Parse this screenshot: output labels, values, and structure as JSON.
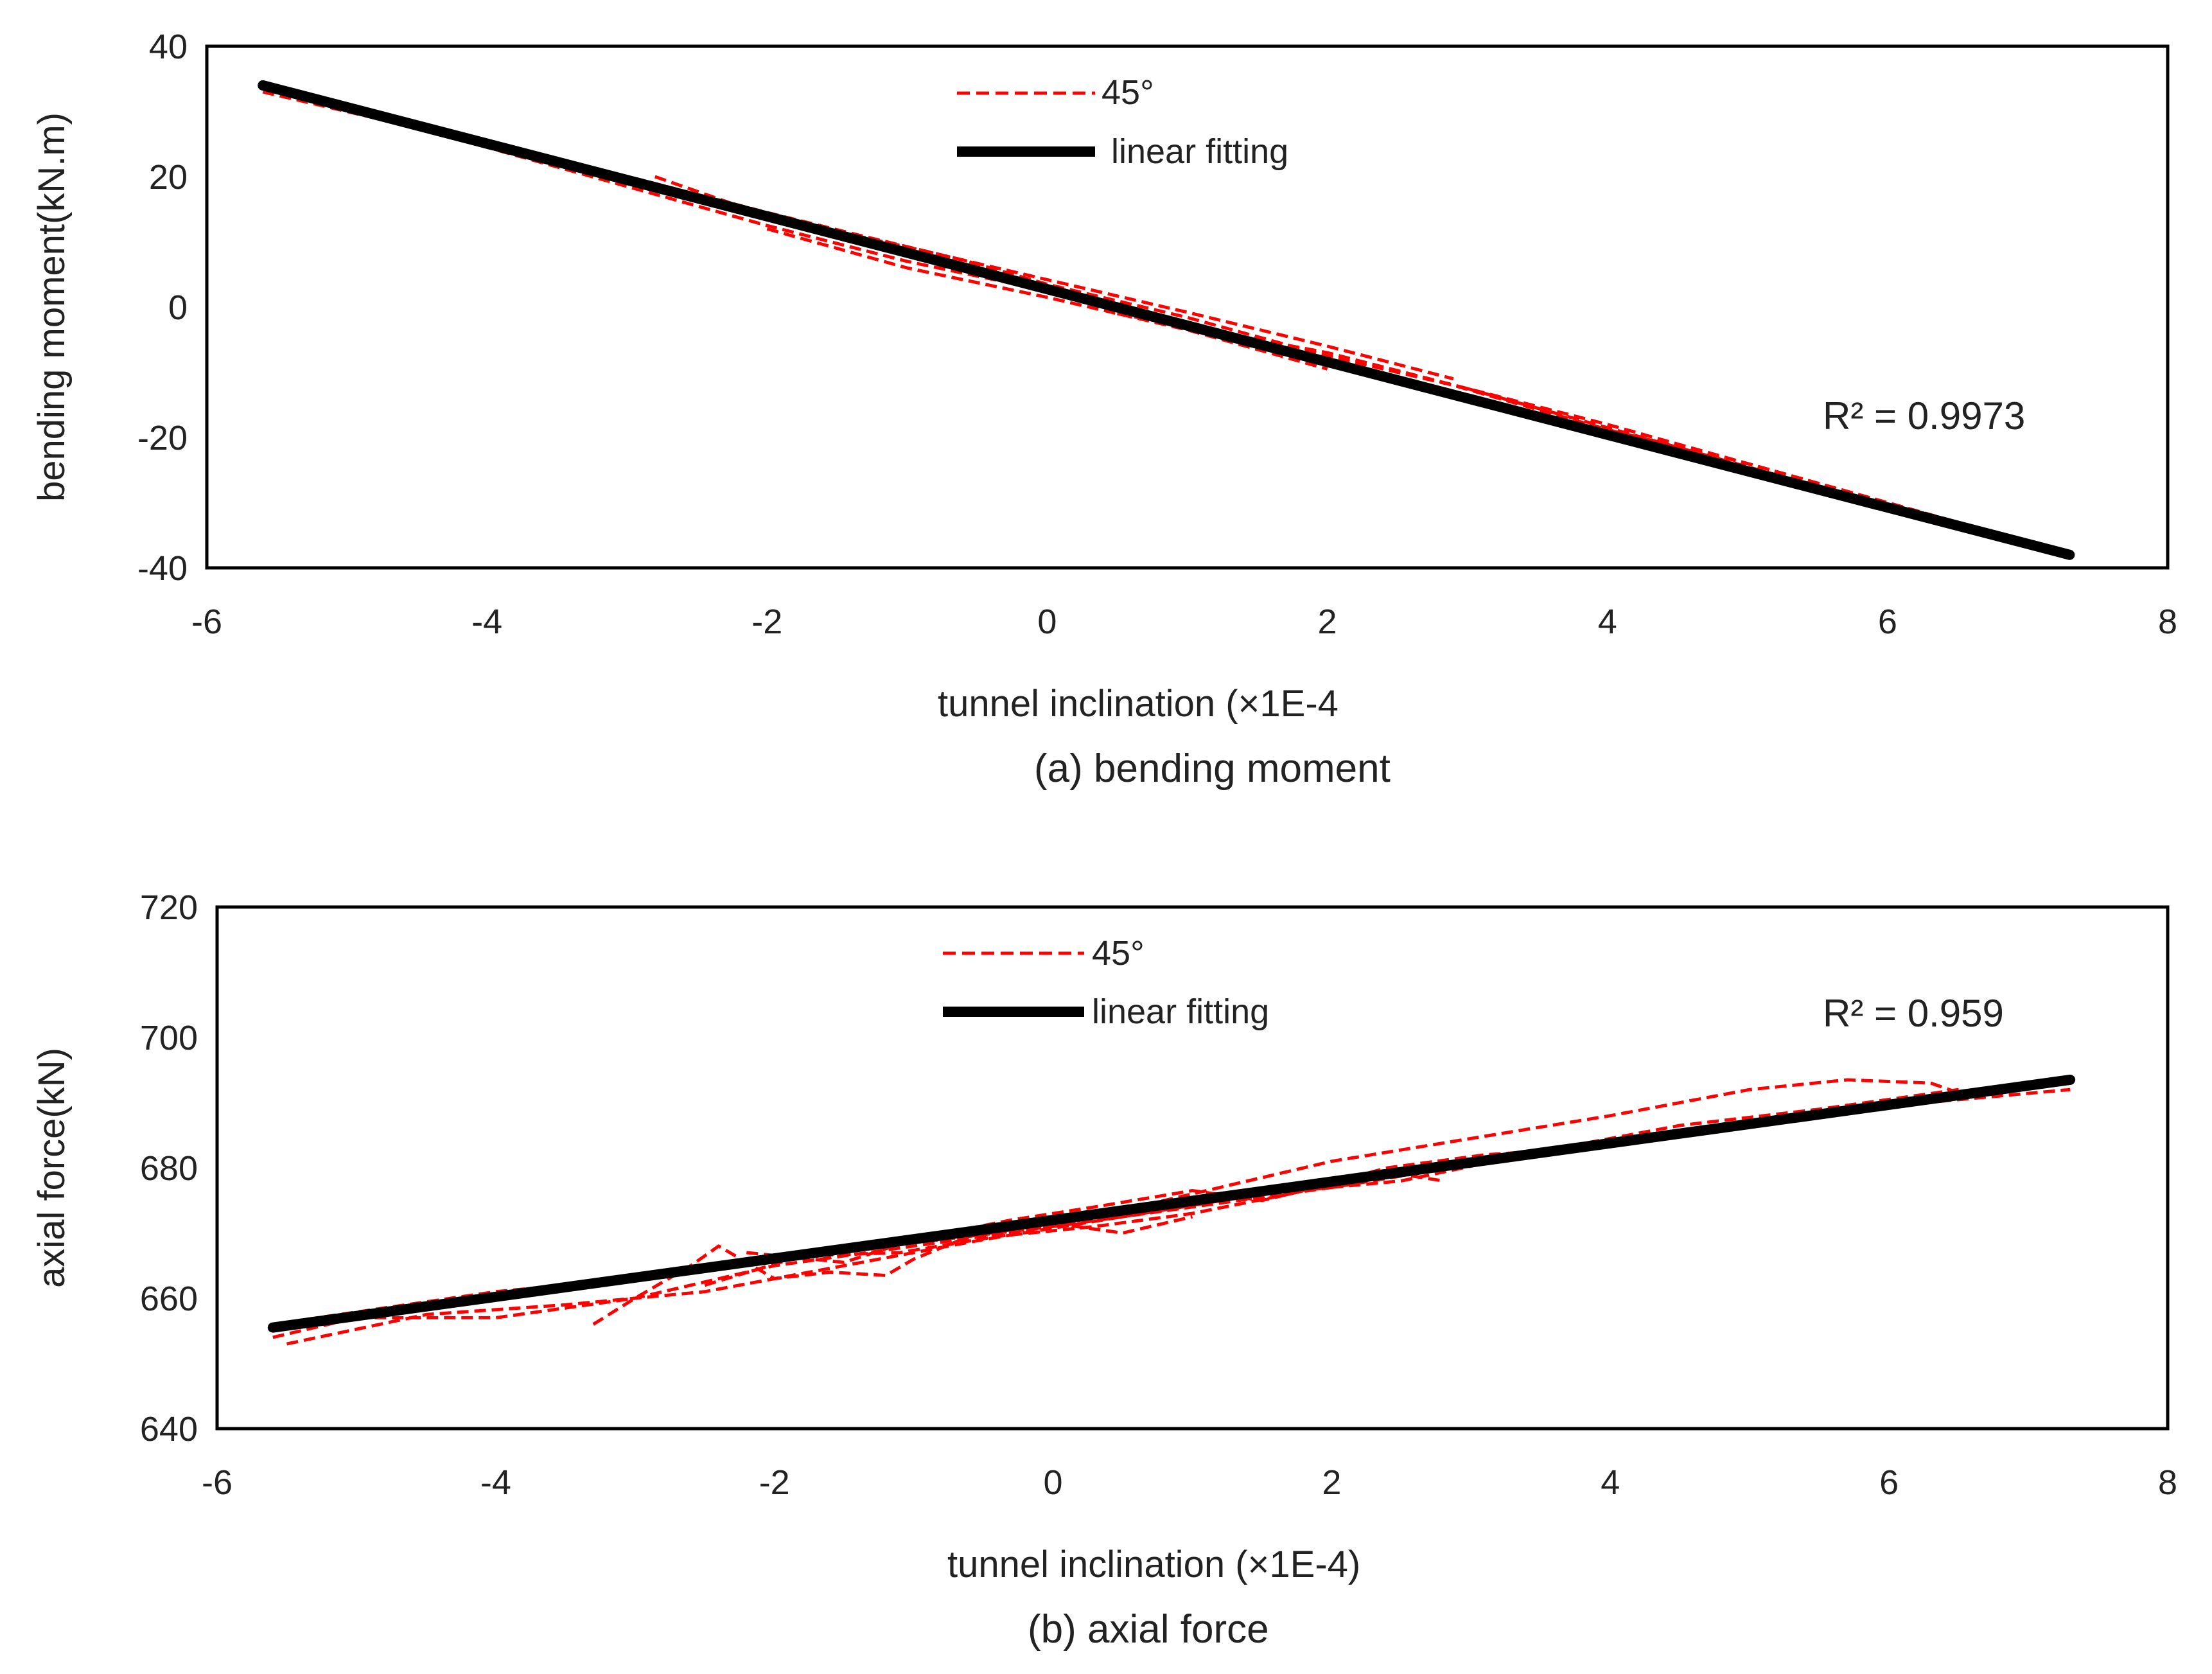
{
  "chart_data": [
    {
      "id": "a",
      "type": "line",
      "title": "",
      "caption": "(a)  bending moment",
      "xlabel": "tunnel inclination  (×1E-4",
      "ylabel": "bending moment(kN.m)",
      "xlim": [
        -6,
        8
      ],
      "ylim": [
        -40,
        40
      ],
      "xticks": [
        -6,
        -4,
        -2,
        0,
        2,
        4,
        6,
        8
      ],
      "yticks": [
        -40,
        -20,
        0,
        20,
        40
      ],
      "legend": [
        "45°",
        "linear fitting"
      ],
      "annotation": "R² = 0.9973",
      "colors": {
        "measured": "#ff0000",
        "fit": "#000000"
      },
      "series": [
        {
          "name": "45°",
          "style": "dashed",
          "curves": [
            {
              "x": [
                -5.6,
                -4.0,
                -2.9,
                -2.0,
                -1.3,
                -0.6,
                0.0,
                1.0,
                2.0,
                2.9,
                4.0,
                5.0,
                6.0,
                6.5
              ],
              "y": [
                34.0,
                25.0,
                19.5,
                14.5,
                10.8,
                7.2,
                3.5,
                -1.6,
                -7.5,
                -12.0,
                -18.8,
                -24.0,
                -30.0,
                -33.0
              ]
            },
            {
              "x": [
                -5.6,
                -4.5,
                -3.0,
                -2.0,
                -1.0,
                0.0,
                1.0,
                2.0,
                3.0
              ],
              "y": [
                33.0,
                27.5,
                18.5,
                12.5,
                7.0,
                2.5,
                -2.8,
                -8.5,
                -13.5
              ]
            },
            {
              "x": [
                -2.8,
                -2.0,
                -1.0,
                0.0,
                1.0,
                2.0,
                2.9
              ],
              "y": [
                20.0,
                14.0,
                9.2,
                4.2,
                -0.8,
                -6.0,
                -11.0
              ]
            },
            {
              "x": [
                -2.0,
                -1.0,
                0.0,
                1.0,
                2.0
              ],
              "y": [
                12.0,
                6.0,
                1.5,
                -3.5,
                -9.5
              ]
            },
            {
              "x": [
                -1.5,
                -0.5,
                0.5,
                1.5
              ],
              "y": [
                10.8,
                5.5,
                -0.5,
                -5.0
              ]
            },
            {
              "x": [
                0.5,
                2.0,
                4.0,
                6.0,
                7.3
              ],
              "y": [
                -1.0,
                -7.0,
                -18.0,
                -30.0,
                -38.0
              ]
            },
            {
              "x": [
                3.0,
                4.0,
                5.0,
                6.0,
                7.3
              ],
              "y": [
                -12.5,
                -18.5,
                -24.5,
                -30.5,
                -38.5
              ]
            }
          ]
        },
        {
          "name": "linear fitting",
          "style": "solid",
          "x": [
            -5.6,
            7.3
          ],
          "y": [
            34.0,
            -38.0
          ]
        }
      ]
    },
    {
      "id": "b",
      "type": "line",
      "title": "",
      "caption": "(b)  axial force",
      "xlabel": "tunnel inclination  (×1E-4)",
      "ylabel": "axial force(kN)",
      "xlim": [
        -6,
        8
      ],
      "ylim": [
        640,
        720
      ],
      "xticks": [
        -6,
        -4,
        -2,
        0,
        2,
        4,
        6,
        8
      ],
      "yticks": [
        640,
        660,
        680,
        700,
        720
      ],
      "legend": [
        "45°",
        "linear fitting"
      ],
      "annotation": "R² = 0.959",
      "colors": {
        "measured": "#ff0000",
        "fit": "#000000"
      },
      "series": [
        {
          "name": "45°",
          "style": "dashed",
          "curves": [
            {
              "x": [
                -5.6,
                -5.0,
                -4.0,
                -3.0,
                -2.0,
                -1.0,
                0.0,
                1.0,
                2.0,
                3.0,
                4.0,
                5.0,
                5.7,
                6.3,
                6.5
              ],
              "y": [
                654.0,
                657.0,
                657.0,
                660.0,
                665.0,
                668.0,
                671.0,
                676.0,
                681.0,
                684.5,
                688.0,
                692.0,
                693.5,
                693.0,
                691.5
              ]
            },
            {
              "x": [
                -5.6,
                -4.0,
                -3.0,
                -2.0,
                -1.0,
                0.0,
                1.0,
                2.0,
                3.0,
                4.0,
                5.0,
                6.0,
                7.3
              ],
              "y": [
                656.0,
                661.0,
                663.0,
                666.0,
                668.5,
                671.0,
                674.0,
                677.0,
                680.5,
                684.0,
                686.5,
                689.5,
                692.0
              ]
            },
            {
              "x": [
                -5.5,
                -4.5,
                -3.5,
                -2.5,
                -1.5,
                -0.5,
                0.5,
                1.5,
                2.5,
                3.5,
                4.5,
                5.5,
                6.5
              ],
              "y": [
                653.0,
                657.5,
                659.0,
                661.0,
                665.0,
                669.0,
                672.5,
                676.0,
                678.0,
                682.5,
                686.5,
                689.0,
                692.0
              ]
            },
            {
              "x": [
                -3.3,
                -3.0,
                -2.6,
                -2.4,
                -2.0,
                -1.6,
                -1.2,
                -1.0,
                -0.6,
                0.0,
                0.5,
                1.0
              ],
              "y": [
                656.0,
                660.0,
                665.0,
                668.0,
                663.0,
                664.0,
                663.5,
                666.0,
                669.5,
                671.5,
                670.0,
                672.5
              ]
            },
            {
              "x": [
                -2.2,
                -1.5,
                -1.0,
                -0.3,
                0.3,
                1.0,
                1.5,
                2.0,
                2.5,
                2.8
              ],
              "y": [
                667.0,
                665.5,
                669.0,
                672.0,
                674.0,
                676.5,
                675.0,
                677.5,
                679.0,
                678.0
              ]
            },
            {
              "x": [
                -2.5,
                -1.8,
                -1.1,
                -0.4,
                0.3,
                1.0,
                1.7,
                2.4,
                3.1,
                3.8
              ],
              "y": [
                662.0,
                666.5,
                667.0,
                669.5,
                671.0,
                673.0,
                676.0,
                680.0,
                682.0,
                683.0
              ]
            }
          ]
        },
        {
          "name": "linear fitting",
          "style": "solid",
          "x": [
            -5.6,
            7.3
          ],
          "y": [
            655.5,
            693.5
          ]
        }
      ]
    }
  ]
}
